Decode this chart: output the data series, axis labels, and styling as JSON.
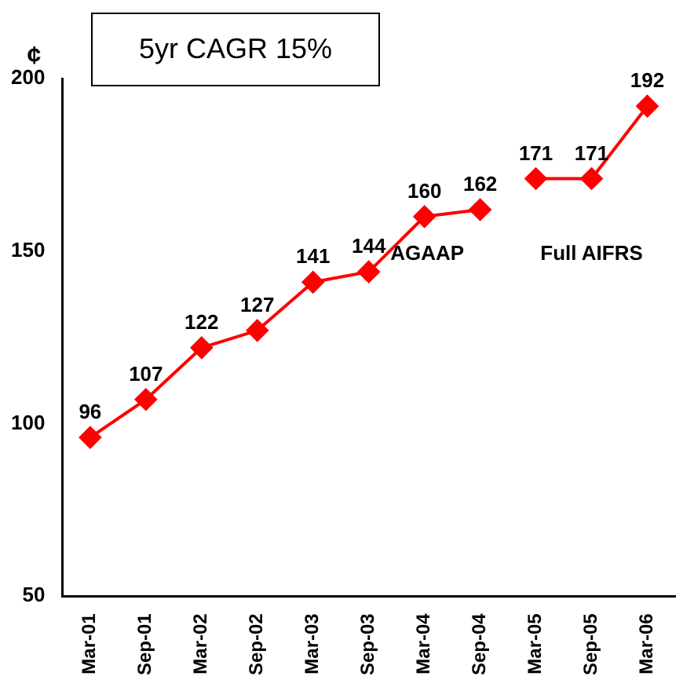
{
  "chart_data": {
    "type": "line",
    "ylabel": "¢",
    "categories": [
      "Mar-01",
      "Sep-01",
      "Mar-02",
      "Sep-02",
      "Mar-03",
      "Sep-03",
      "Mar-04",
      "Sep-04",
      "Mar-05",
      "Sep-05",
      "Mar-06"
    ],
    "series": [
      {
        "color": "#ff0000",
        "values": [
          96,
          107,
          122,
          127,
          141,
          144,
          160,
          162,
          null,
          null,
          null
        ]
      },
      {
        "color": "#ff0000",
        "values": [
          null,
          null,
          null,
          null,
          null,
          null,
          null,
          null,
          171,
          171,
          192
        ]
      }
    ],
    "ylim": [
      50,
      200
    ],
    "yticks": [
      50,
      100,
      150,
      200
    ],
    "grid": false,
    "legend": false,
    "marker": "diamond",
    "line_style": "solid",
    "data_labels": true,
    "annotations": [
      "5yr CAGR 15%",
      "AGAAP",
      "Full AIFRS"
    ]
  }
}
